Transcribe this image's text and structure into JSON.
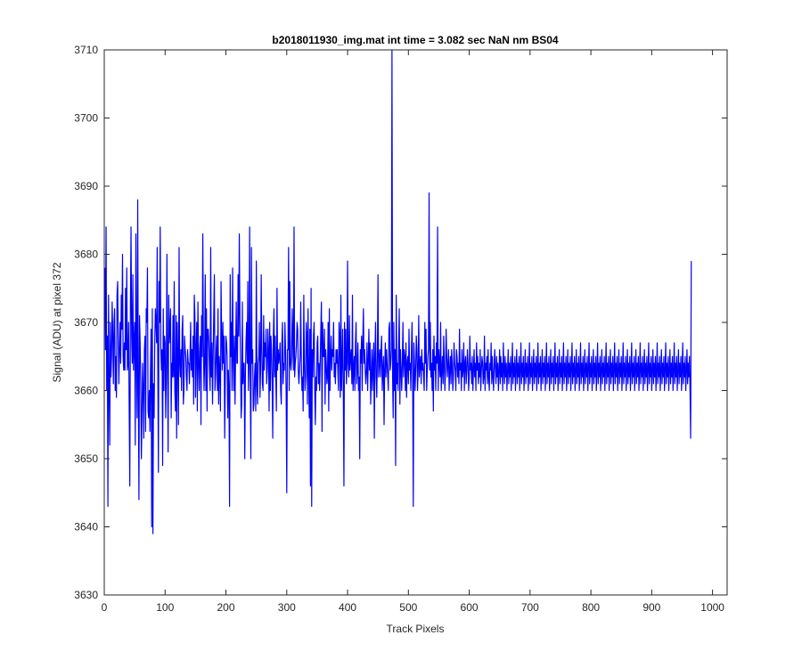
{
  "chart_data": {
    "type": "line",
    "title": "b2018011930_img.mat int time = 3.082 sec  NaN nm BS04",
    "xlabel": "Track Pixels",
    "ylabel": "Signal (ADU) at pixel 372",
    "xlim": [
      0,
      1024
    ],
    "ylim": [
      3630,
      3710
    ],
    "xticks": [
      "0",
      "100",
      "200",
      "300",
      "400",
      "500",
      "600",
      "700",
      "800",
      "900",
      "1000"
    ],
    "yticks": [
      "3630",
      "3640",
      "3650",
      "3660",
      "3670",
      "3680",
      "3690",
      "3700",
      "3710"
    ],
    "grid": false,
    "legend": "none",
    "line_color": "#0000ff",
    "series": [
      {
        "x_start": 1,
        "x_step": 1,
        "values": [
          3678,
          3666,
          3684,
          3660,
          3668,
          3643,
          3674,
          3661,
          3652,
          3670,
          3662,
          3665,
          3673,
          3668,
          3661,
          3670,
          3672,
          3660,
          3665,
          3659,
          3674,
          3676,
          3668,
          3661,
          3666,
          3670,
          3664,
          3674,
          3669,
          3680,
          3665,
          3663,
          3667,
          3663,
          3675,
          3666,
          3678,
          3663,
          3664,
          3670,
          3657,
          3646,
          3672,
          3684,
          3668,
          3664,
          3677,
          3663,
          3667,
          3670,
          3652,
          3683,
          3665,
          3656,
          3688,
          3660,
          3644,
          3671,
          3667,
          3661,
          3650,
          3656,
          3664,
          3660,
          3653,
          3666,
          3668,
          3654,
          3672,
          3670,
          3678,
          3657,
          3656,
          3660,
          3654,
          3663,
          3669,
          3640,
          3672,
          3639,
          3661,
          3656,
          3667,
          3672,
          3670,
          3667,
          3681,
          3664,
          3648,
          3676,
          3670,
          3684,
          3666,
          3663,
          3666,
          3649,
          3672,
          3660,
          3668,
          3667,
          3656,
          3662,
          3680,
          3664,
          3651,
          3674,
          3667,
          3669,
          3672,
          3656,
          3664,
          3662,
          3671,
          3662,
          3676,
          3660,
          3657,
          3671,
          3653,
          3670,
          3664,
          3655,
          3681,
          3664,
          3662,
          3666,
          3660,
          3669,
          3671,
          3658,
          3660,
          3668,
          3666,
          3665,
          3662,
          3660,
          3666,
          3664,
          3664,
          3661,
          3665,
          3670,
          3663,
          3666,
          3662,
          3668,
          3658,
          3674,
          3671,
          3659,
          3666,
          3670,
          3657,
          3673,
          3664,
          3660,
          3666,
          3668,
          3655,
          3671,
          3665,
          3683,
          3667,
          3660,
          3664,
          3677,
          3660,
          3672,
          3657,
          3669,
          3669,
          3667,
          3663,
          3660,
          3681,
          3662,
          3667,
          3658,
          3665,
          3671,
          3677,
          3660,
          3662,
          3666,
          3668,
          3660,
          3672,
          3658,
          3665,
          3663,
          3657,
          3676,
          3668,
          3663,
          3670,
          3664,
          3668,
          3653,
          3662,
          3668,
          3667,
          3665,
          3656,
          3663,
          3660,
          3643,
          3677,
          3665,
          3670,
          3660,
          3678,
          3665,
          3660,
          3668,
          3658,
          3666,
          3673,
          3664,
          3664,
          3677,
          3668,
          3683,
          3671,
          3665,
          3656,
          3658,
          3673,
          3661,
          3664,
          3664,
          3650,
          3662,
          3667,
          3670,
          3664,
          3676,
          3660,
          3664,
          3684,
          3662,
          3650,
          3681,
          3664,
          3666,
          3657,
          3658,
          3662,
          3664,
          3657,
          3679,
          3661,
          3658,
          3664,
          3665,
          3670,
          3659,
          3663,
          3677,
          3666,
          3661,
          3660,
          3671,
          3663,
          3667,
          3665,
          3669,
          3661,
          3663,
          3669,
          3666,
          3657,
          3670,
          3660,
          3668,
          3666,
          3661,
          3653,
          3668,
          3672,
          3662,
          3668,
          3662,
          3657,
          3675,
          3663,
          3666,
          3664,
          3665,
          3667,
          3660,
          3658,
          3667,
          3670,
          3661,
          3664,
          3663,
          3670,
          3666,
          3660,
          3645,
          3666,
          3666,
          3681,
          3660,
          3676,
          3664,
          3663,
          3665,
          3672,
          3667,
          3663,
          3684,
          3662,
          3664,
          3665,
          3667,
          3670,
          3669,
          3663,
          3661,
          3663,
          3665,
          3673,
          3664,
          3660,
          3662,
          3657,
          3674,
          3664,
          3660,
          3662,
          3670,
          3668,
          3658,
          3672,
          3663,
          3656,
          3669,
          3646,
          3675,
          3643,
          3666,
          3662,
          3668,
          3670,
          3660,
          3655,
          3662,
          3660,
          3667,
          3668,
          3661,
          3664,
          3660,
          3664,
          3669,
          3673,
          3654,
          3670,
          3665,
          3665,
          3669,
          3658,
          3666,
          3664,
          3661,
          3662,
          3670,
          3657,
          3672,
          3660,
          3665,
          3668,
          3663,
          3666,
          3665,
          3670,
          3662,
          3664,
          3661,
          3666,
          3664,
          3666,
          3663,
          3660,
          3670,
          3668,
          3659,
          3674,
          3660,
          3664,
          3669,
          3660,
          3646,
          3670,
          3663,
          3669,
          3661,
          3664,
          3679,
          3664,
          3662,
          3671,
          3663,
          3665,
          3666,
          3661,
          3674,
          3660,
          3663,
          3665,
          3660,
          3667,
          3670,
          3661,
          3663,
          3667,
          3660,
          3662,
          3650,
          3666,
          3664,
          3668,
          3660,
          3667,
          3672,
          3664,
          3666,
          3663,
          3661,
          3663,
          3667,
          3660,
          3664,
          3669,
          3663,
          3667,
          3658,
          3662,
          3666,
          3660,
          3664,
          3667,
          3653,
          3665,
          3670,
          3662,
          3659,
          3665,
          3677,
          3662,
          3664,
          3666,
          3662,
          3666,
          3668,
          3660,
          3663,
          3665,
          3655,
          3663,
          3667,
          3662,
          3666,
          3664,
          3662,
          3660,
          3669,
          3670,
          3663,
          3664,
          3666,
          3710,
          3662,
          3656,
          3670,
          3660,
          3666,
          3649,
          3674,
          3661,
          3664,
          3660,
          3667,
          3672,
          3658,
          3666,
          3663,
          3660,
          3664,
          3670,
          3662,
          3666,
          3665,
          3660,
          3667,
          3659,
          3664,
          3665,
          3661,
          3669,
          3663,
          3664,
          3660,
          3666,
          3670,
          3662,
          3643,
          3667,
          3664,
          3660,
          3663,
          3668,
          3666,
          3660,
          3663,
          3671,
          3662,
          3664,
          3665,
          3661,
          3666,
          3663,
          3664,
          3662,
          3660,
          3670,
          3664,
          3669,
          3660,
          3663,
          3665,
          3666,
          3689,
          3663,
          3670,
          3662,
          3664,
          3660,
          3666,
          3657,
          3668,
          3663,
          3665,
          3660,
          3667,
          3664,
          3684,
          3660,
          3666,
          3664,
          3662,
          3670,
          3660,
          3663,
          3665,
          3661,
          3668,
          3664,
          3660,
          3663,
          3669,
          3665,
          3662,
          3664,
          3666,
          3660,
          3663,
          3665,
          3661,
          3666,
          3664,
          3660,
          3662,
          3667,
          3664,
          3663,
          3660,
          3666,
          3665,
          3662,
          3664,
          3661,
          3669,
          3663,
          3664,
          3660,
          3666,
          3662,
          3663,
          3667,
          3660,
          3664,
          3665,
          3661,
          3663,
          3666,
          3664,
          3660,
          3662,
          3668,
          3663,
          3664,
          3661,
          3665,
          3660,
          3663,
          3666,
          3662,
          3664,
          3660,
          3667,
          3663,
          3665,
          3661,
          3664,
          3662,
          3666,
          3660,
          3663,
          3665,
          3664,
          3661,
          3662,
          3668,
          3660,
          3664,
          3663,
          3665,
          3661,
          3666,
          3662,
          3660,
          3664,
          3663,
          3667,
          3661,
          3665,
          3662,
          3660,
          3664,
          3666,
          3663,
          3661,
          3665,
          3662,
          3664,
          3660,
          3663,
          3666,
          3661,
          3665,
          3662,
          3664,
          3660,
          3667,
          3663,
          3661,
          3665,
          3662,
          3664,
          3660,
          3663,
          3666,
          3661,
          3664,
          3662,
          3665,
          3660,
          3663,
          3667,
          3661,
          3664,
          3662,
          3665,
          3660,
          3663,
          3666,
          3661,
          3664,
          3662,
          3665,
          3660,
          3663,
          3667,
          3661,
          3664,
          3662,
          3665,
          3660,
          3663,
          3666,
          3661,
          3664,
          3662,
          3665,
          3660,
          3663,
          3667,
          3661,
          3664,
          3662,
          3665,
          3660,
          3663,
          3666,
          3661,
          3664,
          3662,
          3665,
          3660,
          3663,
          3667,
          3661,
          3664,
          3662,
          3665,
          3660,
          3663,
          3666,
          3661,
          3664,
          3662,
          3665,
          3660,
          3663,
          3667,
          3661,
          3664,
          3662,
          3665,
          3660,
          3663,
          3666,
          3661,
          3664,
          3662,
          3665,
          3660,
          3663,
          3667,
          3661,
          3664,
          3662,
          3665,
          3660,
          3663,
          3666,
          3661,
          3664,
          3662,
          3665,
          3660,
          3663,
          3667,
          3661,
          3664,
          3662,
          3665,
          3660,
          3663,
          3666,
          3661,
          3664,
          3662,
          3665,
          3660,
          3663,
          3667,
          3661,
          3664,
          3662,
          3665,
          3660,
          3663,
          3666,
          3661,
          3664,
          3662,
          3665,
          3660,
          3663,
          3667,
          3661,
          3664,
          3662,
          3665,
          3660,
          3663,
          3666,
          3661,
          3664,
          3662,
          3665,
          3660,
          3663,
          3667,
          3661,
          3664,
          3662,
          3665,
          3660,
          3663,
          3666,
          3661,
          3664,
          3662,
          3665,
          3660,
          3663,
          3667,
          3661,
          3664,
          3662,
          3665,
          3660,
          3663,
          3666,
          3661,
          3664,
          3662,
          3665,
          3660,
          3663,
          3667,
          3661,
          3664,
          3662,
          3665,
          3660,
          3663,
          3666,
          3661,
          3664,
          3662,
          3665,
          3660,
          3663,
          3667,
          3661,
          3664,
          3662,
          3665,
          3660,
          3663,
          3666,
          3661,
          3664,
          3662,
          3665,
          3660,
          3663,
          3667,
          3661,
          3664,
          3662,
          3665,
          3660,
          3663,
          3666,
          3661,
          3664,
          3662,
          3665,
          3660,
          3663,
          3667,
          3661,
          3664,
          3662,
          3665,
          3660,
          3663,
          3666,
          3661,
          3664,
          3662,
          3665,
          3660,
          3663,
          3667,
          3661,
          3664,
          3662,
          3665,
          3660,
          3663,
          3666,
          3661,
          3664,
          3662,
          3665,
          3660,
          3663,
          3667,
          3661,
          3664,
          3662,
          3665,
          3660,
          3663,
          3666,
          3661,
          3664,
          3662,
          3665,
          3660,
          3663,
          3667,
          3661,
          3664,
          3662,
          3665,
          3660,
          3663,
          3666,
          3661,
          3664,
          3662,
          3665,
          3660,
          3663,
          3667,
          3661,
          3664,
          3662,
          3665,
          3660,
          3663,
          3666,
          3661,
          3664,
          3662,
          3665,
          3660,
          3663,
          3667,
          3661,
          3664,
          3662,
          3665,
          3660,
          3663,
          3666,
          3661,
          3664,
          3662,
          3665,
          3660,
          3663,
          3667,
          3661,
          3664,
          3662,
          3665,
          3660,
          3663,
          3666,
          3661,
          3664,
          3662,
          3665,
          3660,
          3653,
          3679
        ]
      }
    ]
  }
}
